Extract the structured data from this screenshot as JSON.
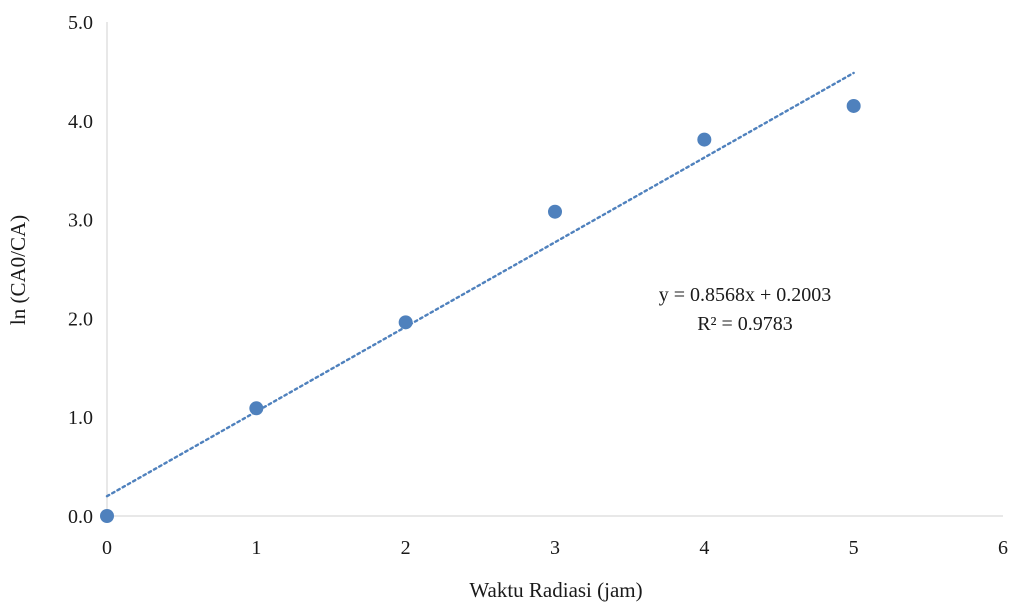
{
  "chart_data": {
    "type": "scatter",
    "xlabel": "Waktu Radiasi (jam)",
    "ylabel": "ln (CA0/CA)",
    "xlim": [
      0,
      6
    ],
    "ylim": [
      0,
      5
    ],
    "xticks": [
      "0",
      "1",
      "2",
      "3",
      "4",
      "5",
      "6"
    ],
    "yticks": [
      "0.0",
      "1.0",
      "2.0",
      "3.0",
      "4.0",
      "5.0"
    ],
    "grid": false,
    "legend": "none",
    "marker_color": "#4f81bd",
    "trend_color": "#4f81bd",
    "axis_color": "#d9d9d9",
    "series": [
      {
        "x": [
          0,
          1,
          2,
          3,
          4,
          5
        ],
        "y": [
          0.0,
          1.09,
          1.96,
          3.08,
          3.81,
          4.15
        ]
      }
    ],
    "trendline": {
      "type": "linear",
      "slope": 0.8568,
      "intercept": 0.2003,
      "x_range": [
        0,
        5
      ],
      "style": "dotted"
    },
    "annotations": {
      "equation": "y = 0.8568x + 0.2003",
      "r_squared": "R² = 0.9783"
    }
  }
}
